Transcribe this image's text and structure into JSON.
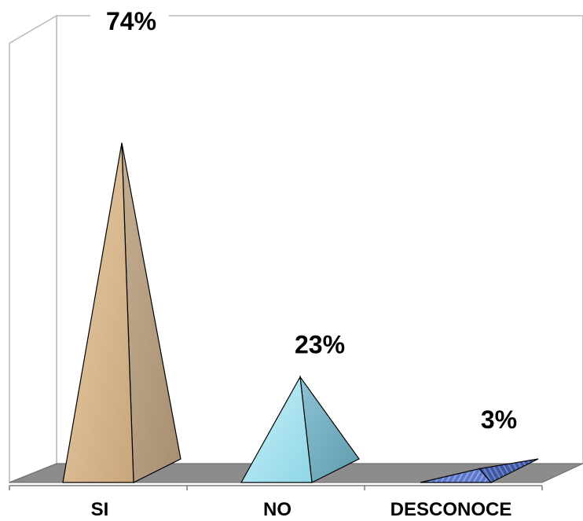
{
  "chart_data": {
    "type": "bar",
    "style": "3d-pyramid",
    "categories": [
      "SI",
      "NO",
      "DESCONOCE"
    ],
    "values": [
      74,
      23,
      3
    ],
    "data_labels": [
      "74%",
      "23%",
      "3%"
    ],
    "ylim": [
      0,
      100
    ],
    "grid": false,
    "legend": "none"
  },
  "colors": {
    "si_front": "#dcbc94",
    "si_side": "#b79f80",
    "no_front": "#a9e3ef",
    "no_side": "#7ab3c3",
    "desconoce_front": "#5f77c8",
    "desconoce_side": "#3f579f",
    "floor": "#8c8c8c",
    "wall": "#ffffff",
    "wall_edge": "#b8b8b8"
  }
}
